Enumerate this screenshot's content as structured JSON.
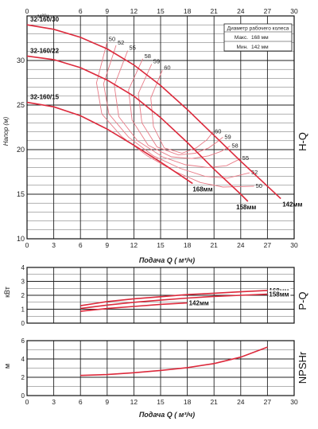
{
  "chart_data": [
    {
      "type": "line",
      "title": "H-Q",
      "ylabel": "Напор (м)",
      "xlabel": "Подача Q ( м³/ч)",
      "top_axis_label": "м³/ч",
      "xlim": [
        0,
        30
      ],
      "ylim": [
        10,
        35
      ],
      "x_ticks": [
        0,
        3,
        6,
        9,
        12,
        15,
        18,
        21,
        24,
        27,
        30
      ],
      "y_ticks": [
        10,
        15,
        20,
        25,
        30
      ],
      "grid": true,
      "series": [
        {
          "name": "32-160/30",
          "x": [
            0,
            3,
            6,
            9,
            12,
            15,
            18,
            21,
            24,
            27,
            28.5
          ],
          "y": [
            34.0,
            33.5,
            32.6,
            31.3,
            29.5,
            27.2,
            24.5,
            21.6,
            18.7,
            15.9,
            14.5
          ]
        },
        {
          "name": "32-160/22",
          "x": [
            0,
            3,
            6,
            9,
            12,
            15,
            18,
            21,
            24,
            24.8
          ],
          "y": [
            30.5,
            30.1,
            29.2,
            27.8,
            26.0,
            23.6,
            20.8,
            17.8,
            15.0,
            14.2
          ]
        },
        {
          "name": "32-160/15",
          "x": [
            0,
            3,
            6,
            9,
            12,
            15,
            18,
            18.6
          ],
          "y": [
            25.3,
            24.8,
            23.8,
            22.3,
            20.5,
            18.6,
            16.6,
            16.2
          ]
        }
      ],
      "curve_labels": [
        "142мм",
        "158мм",
        "168мм"
      ],
      "iso_efficiency": [
        {
          "label": "50",
          "x": [
            9.0,
            7.8,
            8.4,
            10.6,
            13.5,
            16.5,
            19.5,
            22.0,
            25.5
          ],
          "y": [
            32.1,
            27.5,
            24.0,
            21.5,
            19.3,
            17.6,
            16.3,
            15.8,
            15.9
          ]
        },
        {
          "label": "52",
          "x": [
            10.0,
            8.6,
            9.2,
            11.4,
            14.2,
            17.2,
            20.0,
            22.5,
            25.0
          ],
          "y": [
            31.7,
            27.4,
            24.0,
            21.4,
            19.3,
            17.9,
            17.0,
            16.8,
            17.4
          ]
        },
        {
          "label": "55",
          "x": [
            11.3,
            9.8,
            10.3,
            12.4,
            15.2,
            17.8,
            20.3,
            22.4,
            24.0
          ],
          "y": [
            31.1,
            27.2,
            23.7,
            21.0,
            19.2,
            18.3,
            18.0,
            18.2,
            19.0
          ]
        },
        {
          "label": "58",
          "x": [
            13.0,
            11.4,
            11.8,
            13.6,
            16.2,
            18.5,
            20.4,
            21.8,
            22.8
          ],
          "y": [
            30.2,
            26.7,
            23.3,
            20.5,
            19.2,
            19.0,
            19.3,
            19.8,
            20.4
          ]
        },
        {
          "label": "59",
          "x": [
            14.0,
            12.5,
            12.9,
            14.6,
            17.0,
            18.9,
            20.4,
            21.4,
            22.0
          ],
          "y": [
            29.6,
            26.3,
            23.0,
            20.3,
            19.4,
            19.6,
            20.2,
            20.9,
            21.4
          ]
        },
        {
          "label": "60",
          "x": [
            15.2,
            13.9,
            14.2,
            15.4,
            17.4,
            19.0,
            20.2,
            20.9
          ],
          "y": [
            28.9,
            25.8,
            22.6,
            20.2,
            19.6,
            20.2,
            21.1,
            22.0
          ]
        }
      ],
      "legend": {
        "title": "Диаметр рабочего колеса",
        "max_label": "Макс.",
        "max_value": "168 мм",
        "min_label": "Мин.",
        "min_value": "142 мм"
      }
    },
    {
      "type": "line",
      "title": "P-Q",
      "ylabel": "кВт",
      "xlim": [
        0,
        30
      ],
      "ylim": [
        0,
        4
      ],
      "x_ticks": [
        0,
        3,
        6,
        9,
        12,
        15,
        18,
        21,
        24,
        27,
        30
      ],
      "y_ticks": [
        0,
        1,
        2,
        3,
        4
      ],
      "grid": true,
      "series": [
        {
          "name": "168мм",
          "x": [
            6,
            9,
            12,
            15,
            18,
            21,
            24,
            27
          ],
          "y": [
            1.25,
            1.55,
            1.75,
            1.9,
            2.05,
            2.15,
            2.25,
            2.35
          ]
        },
        {
          "name": "158мм",
          "x": [
            6,
            9,
            12,
            15,
            18,
            21,
            24,
            27
          ],
          "y": [
            1.05,
            1.3,
            1.5,
            1.65,
            1.8,
            1.92,
            2.0,
            2.08
          ]
        },
        {
          "name": "142мм",
          "x": [
            6,
            9,
            12,
            15,
            18
          ],
          "y": [
            0.85,
            1.05,
            1.2,
            1.35,
            1.45
          ]
        }
      ]
    },
    {
      "type": "line",
      "title": "NPSHr",
      "ylabel": "м",
      "xlabel": "Подача Q ( м³/ч)",
      "xlim": [
        0,
        30
      ],
      "ylim": [
        0,
        6
      ],
      "x_ticks": [
        0,
        3,
        6,
        9,
        12,
        15,
        18,
        21,
        24,
        27,
        30
      ],
      "y_ticks": [
        0,
        2,
        4,
        6
      ],
      "grid": true,
      "series": [
        {
          "name": "",
          "x": [
            6,
            9,
            12,
            15,
            18,
            21,
            24,
            27
          ],
          "y": [
            2.2,
            2.3,
            2.5,
            2.75,
            3.05,
            3.5,
            4.2,
            5.3
          ]
        }
      ]
    }
  ],
  "colors": {
    "curve": "#dc2a3c",
    "iso": "#e87a86",
    "grid": "#222222"
  }
}
